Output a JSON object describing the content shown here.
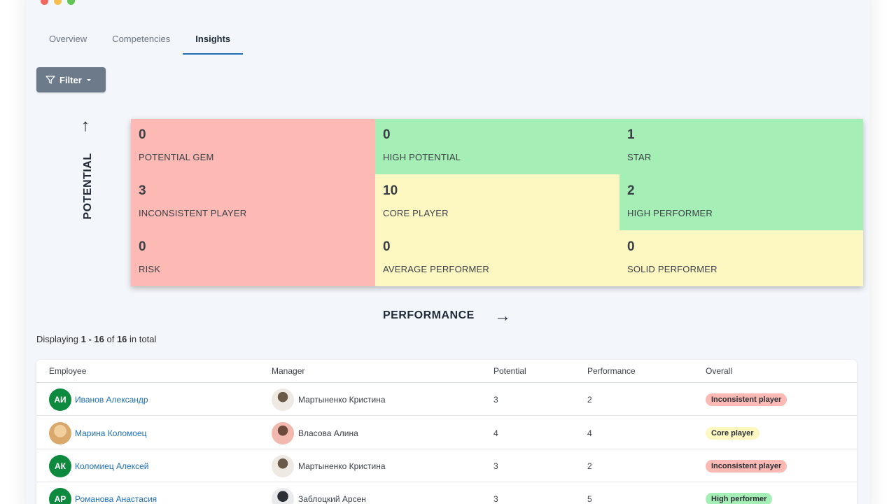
{
  "tabs": [
    {
      "label": "Overview",
      "active": false
    },
    {
      "label": "Competencies",
      "active": false
    },
    {
      "label": "Insights",
      "active": true
    }
  ],
  "filter": {
    "label": "Filter",
    "icon": "filter-icon"
  },
  "matrix": {
    "y_axis_label": "POTENTIAL",
    "x_axis_label": "PERFORMANCE",
    "cells": [
      {
        "count": "0",
        "label": "POTENTIAL GEM",
        "color": "#fdb9b4"
      },
      {
        "count": "0",
        "label": "HIGH POTENTIAL",
        "color": "#a5efb6"
      },
      {
        "count": "1",
        "label": "STAR",
        "color": "#a5efb6"
      },
      {
        "count": "3",
        "label": "INCONSISTENT PLAYER",
        "color": "#fdb9b4"
      },
      {
        "count": "10",
        "label": "CORE PLAYER",
        "color": "#fdf7c1"
      },
      {
        "count": "2",
        "label": "HIGH PERFORMER",
        "color": "#a5efb6"
      },
      {
        "count": "0",
        "label": "RISK",
        "color": "#fdb9b4"
      },
      {
        "count": "0",
        "label": "AVERAGE PERFORMER",
        "color": "#fdf7c1"
      },
      {
        "count": "0",
        "label": "SOLID PERFORMER",
        "color": "#fdf7c1"
      }
    ]
  },
  "pagination": {
    "prefix": "Displaying",
    "range": "1 - 16",
    "of": "of",
    "total": "16",
    "suffix": "in total"
  },
  "table": {
    "headers": {
      "employee": "Employee",
      "manager": "Manager",
      "potential": "Potential",
      "performance": "Performance",
      "overall": "Overall"
    },
    "rows": [
      {
        "initials": "АИ",
        "employee": "Иванов Александр",
        "manager": "Мартыненко Кристина",
        "potential": "3",
        "performance": "2",
        "overall": "Inconsistent player"
      },
      {
        "initials": "",
        "employee": "Марина Коломоец",
        "manager": "Власова Алина",
        "potential": "4",
        "performance": "4",
        "overall": "Core player"
      },
      {
        "initials": "АК",
        "employee": "Коломиец Алексей",
        "manager": "Мартыненко Кристина",
        "potential": "3",
        "performance": "2",
        "overall": "Inconsistent player"
      },
      {
        "initials": "АР",
        "employee": "Романова Анастасия",
        "manager": "Заблоцкий Арсен",
        "potential": "3",
        "performance": "5",
        "overall": "High performer"
      }
    ]
  }
}
